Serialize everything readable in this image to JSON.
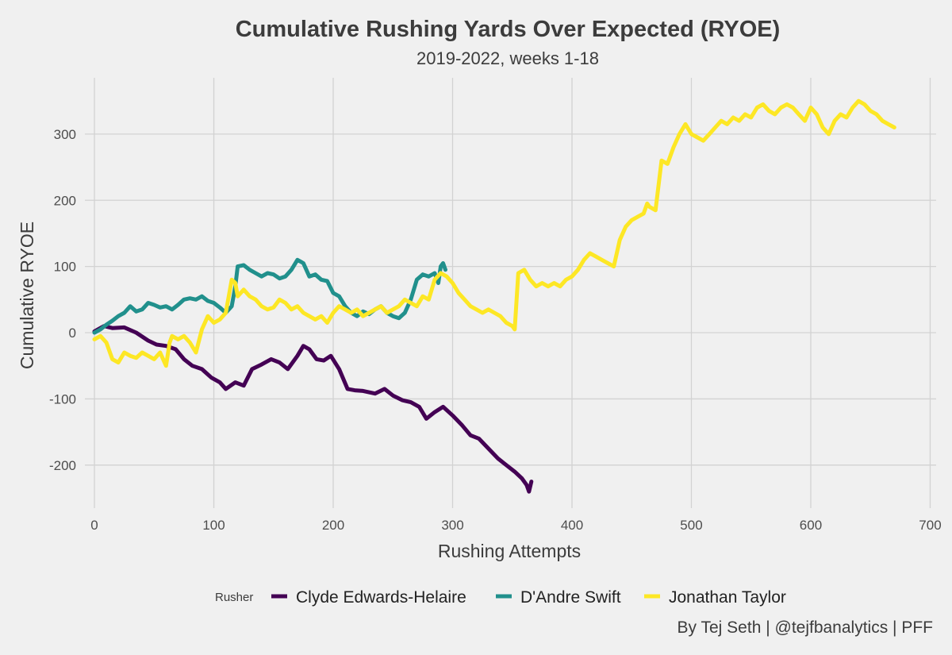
{
  "chart_data": {
    "type": "line",
    "title": "Cumulative Rushing Yards Over Expected (RYOE)",
    "subtitle": "2019-2022, weeks 1-18",
    "xlabel": "Rushing Attempts",
    "ylabel": "Cumulative RYOE",
    "xlim": [
      -8,
      705
    ],
    "ylim": [
      -265,
      385
    ],
    "xticks": [
      0,
      100,
      200,
      300,
      400,
      500,
      600,
      700
    ],
    "yticks": [
      -200,
      -100,
      0,
      100,
      200,
      300
    ],
    "grid": true,
    "legend_position": "bottom",
    "legend_title": "Rusher",
    "caption": "By Tej Seth | @tejfbanalytics | PFF",
    "series": [
      {
        "name": "Clyde Edwards-Helaire",
        "color": "#440154",
        "x": [
          0,
          8,
          15,
          25,
          35,
          45,
          52,
          60,
          68,
          75,
          82,
          90,
          98,
          105,
          110,
          118,
          125,
          132,
          140,
          148,
          155,
          162,
          170,
          175,
          180,
          186,
          192,
          198,
          205,
          212,
          218,
          225,
          235,
          243,
          250,
          258,
          265,
          272,
          278,
          285,
          292,
          300,
          308,
          315,
          322,
          330,
          338,
          345,
          352,
          358,
          362,
          364,
          366
        ],
        "y": [
          2,
          10,
          7,
          8,
          0,
          -12,
          -18,
          -20,
          -25,
          -40,
          -50,
          -55,
          -68,
          -75,
          -85,
          -75,
          -80,
          -55,
          -48,
          -40,
          -45,
          -55,
          -35,
          -20,
          -25,
          -40,
          -42,
          -35,
          -55,
          -85,
          -87,
          -88,
          -92,
          -85,
          -95,
          -102,
          -105,
          -112,
          -130,
          -120,
          -112,
          -125,
          -140,
          -155,
          -160,
          -175,
          -190,
          -200,
          -210,
          -220,
          -230,
          -240,
          -225
        ]
      },
      {
        "name": "D'Andre Swift",
        "color": "#21908C",
        "x": [
          0,
          5,
          10,
          15,
          20,
          25,
          30,
          35,
          40,
          45,
          50,
          55,
          60,
          65,
          70,
          75,
          80,
          85,
          90,
          95,
          100,
          105,
          110,
          115,
          118,
          120,
          125,
          130,
          135,
          140,
          145,
          150,
          155,
          160,
          165,
          170,
          175,
          180,
          185,
          190,
          195,
          200,
          205,
          210,
          215,
          220,
          225,
          230,
          235,
          240,
          245,
          250,
          255,
          260,
          265,
          270,
          275,
          280,
          285,
          288,
          290,
          292,
          294
        ],
        "y": [
          0,
          5,
          12,
          18,
          25,
          30,
          40,
          32,
          35,
          45,
          42,
          38,
          40,
          35,
          42,
          50,
          52,
          50,
          55,
          48,
          45,
          38,
          30,
          40,
          70,
          100,
          102,
          95,
          90,
          85,
          90,
          88,
          82,
          85,
          95,
          110,
          105,
          85,
          88,
          80,
          78,
          60,
          55,
          40,
          30,
          25,
          32,
          28,
          35,
          40,
          30,
          25,
          22,
          30,
          50,
          80,
          88,
          85,
          90,
          75,
          100,
          105,
          95
        ]
      },
      {
        "name": "Jonathan Taylor",
        "color": "#FDE725",
        "x": [
          0,
          5,
          10,
          15,
          20,
          25,
          30,
          35,
          40,
          45,
          50,
          55,
          60,
          63,
          65,
          70,
          75,
          80,
          85,
          90,
          95,
          100,
          105,
          110,
          115,
          118,
          120,
          125,
          130,
          135,
          140,
          145,
          150,
          155,
          160,
          165,
          170,
          175,
          180,
          185,
          190,
          195,
          200,
          205,
          210,
          215,
          220,
          225,
          230,
          235,
          240,
          245,
          250,
          255,
          260,
          265,
          270,
          275,
          280,
          285,
          290,
          295,
          300,
          305,
          310,
          315,
          320,
          325,
          330,
          335,
          340,
          345,
          350,
          352,
          355,
          360,
          365,
          370,
          375,
          380,
          385,
          390,
          395,
          400,
          405,
          410,
          415,
          420,
          425,
          430,
          435,
          440,
          445,
          450,
          455,
          460,
          463,
          465,
          470,
          475,
          480,
          485,
          490,
          495,
          500,
          505,
          510,
          515,
          520,
          525,
          530,
          535,
          540,
          545,
          550,
          555,
          560,
          565,
          570,
          575,
          580,
          585,
          590,
          595,
          600,
          605,
          610,
          615,
          620,
          625,
          630,
          635,
          640,
          645,
          650,
          655,
          660,
          665,
          670
        ],
        "y": [
          -10,
          -5,
          -15,
          -40,
          -45,
          -30,
          -35,
          -38,
          -30,
          -35,
          -40,
          -30,
          -50,
          -15,
          -5,
          -10,
          -5,
          -15,
          -30,
          5,
          25,
          15,
          20,
          30,
          80,
          75,
          55,
          65,
          55,
          50,
          40,
          35,
          38,
          50,
          45,
          35,
          40,
          30,
          25,
          20,
          25,
          15,
          30,
          40,
          35,
          30,
          35,
          25,
          30,
          35,
          40,
          30,
          35,
          40,
          50,
          45,
          40,
          55,
          50,
          80,
          90,
          85,
          75,
          60,
          50,
          40,
          35,
          30,
          35,
          30,
          25,
          15,
          10,
          5,
          90,
          95,
          80,
          70,
          75,
          70,
          75,
          70,
          80,
          85,
          95,
          110,
          120,
          115,
          110,
          105,
          100,
          140,
          160,
          170,
          175,
          180,
          195,
          190,
          185,
          260,
          255,
          280,
          300,
          315,
          300,
          295,
          290,
          300,
          310,
          320,
          315,
          325,
          320,
          330,
          325,
          340,
          345,
          335,
          330,
          340,
          345,
          340,
          330,
          320,
          340,
          330,
          310,
          300,
          320,
          330,
          325,
          340,
          350,
          345,
          335,
          330,
          320,
          315,
          310
        ]
      }
    ]
  }
}
